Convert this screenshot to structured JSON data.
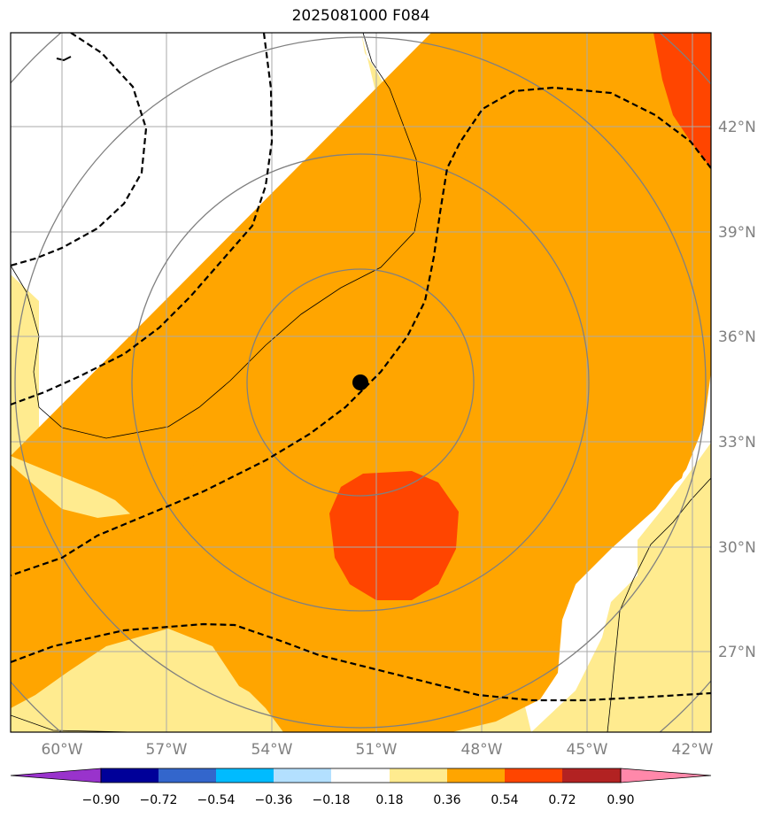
{
  "title": "2025081000 F084",
  "map": {
    "lon_labels": [
      "60°W",
      "57°W",
      "54°W",
      "51°W",
      "48°W",
      "45°W",
      "42°W"
    ],
    "lat_labels": [
      "42°N",
      "39°N",
      "36°N",
      "33°N",
      "30°N",
      "27°N"
    ],
    "lon_range": [
      -61.5,
      -41.6
    ],
    "lat_range": [
      24.7,
      44.6
    ],
    "grid": true,
    "marker": {
      "lon": -51.4,
      "lat": 34.7
    }
  },
  "colorbar": {
    "tick_labels": [
      "−0.90",
      "−0.72",
      "−0.54",
      "−0.36",
      "−0.18",
      "0.18",
      "0.36",
      "0.54",
      "0.72",
      "0.90"
    ],
    "colors": [
      "#9933cc",
      "#000099",
      "#3366cc",
      "#00bbff",
      "#b3e0ff",
      "#ffffff",
      "#ffeb8f",
      "#ffa500",
      "#ff4500",
      "#b22222",
      "#ff88aa"
    ]
  },
  "colors": {
    "fill_low": "#ffeb8f",
    "fill_mid": "#ffa500",
    "fill_high": "#ff4500",
    "grid": "#aaaaaa",
    "contour": "#808080"
  }
}
